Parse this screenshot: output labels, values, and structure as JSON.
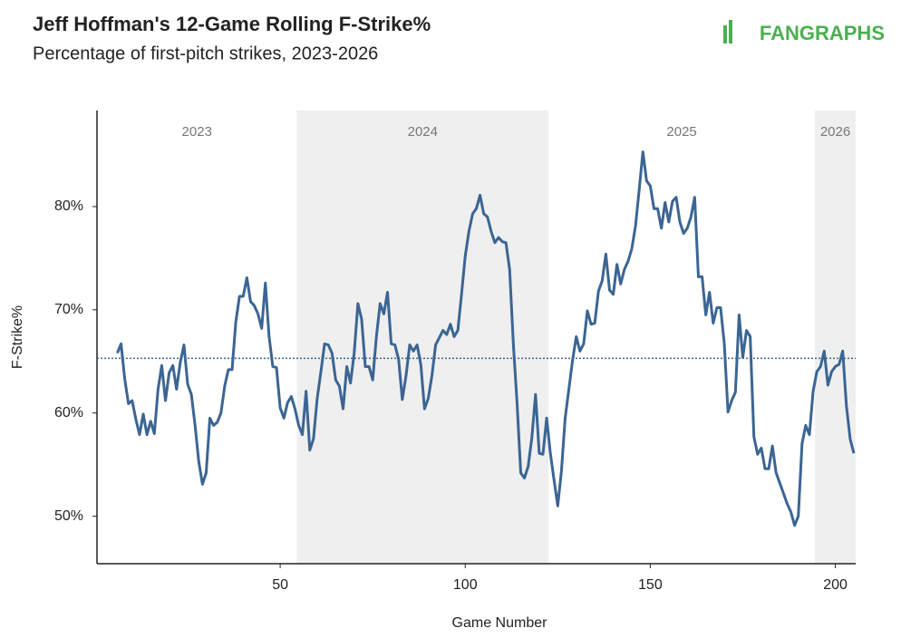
{
  "chart_data": {
    "type": "line",
    "title": "Jeff Hoffman's 12-Game Rolling F-Strike%",
    "subtitle": "Percentage of first-pitch strikes, 2023-2026",
    "logo": "FANGRAPHS",
    "x_label": "Game Number",
    "y_label": "F-Strike%",
    "xlim": [
      0.5,
      205.5
    ],
    "ylim": [
      45.4,
      89.3
    ],
    "xticks": [
      50,
      100,
      150,
      200
    ],
    "yticks": [
      {
        "value": 50,
        "label": "50%"
      },
      {
        "value": 60,
        "label": "60%"
      },
      {
        "value": 70,
        "label": "70%"
      },
      {
        "value": 80,
        "label": "80%"
      }
    ],
    "grid": false,
    "reference_line": 65.3,
    "seasons": [
      {
        "label": "2023",
        "start": 0.5,
        "end": 54.5,
        "shaded": false
      },
      {
        "label": "2024",
        "start": 54.5,
        "end": 122.5,
        "shaded": true
      },
      {
        "label": "2025",
        "start": 122.5,
        "end": 194.5,
        "shaded": false
      },
      {
        "label": "2026",
        "start": 194.5,
        "end": 205.5,
        "shaded": true
      }
    ],
    "x": [
      6,
      7,
      8,
      9,
      10,
      11,
      12,
      13,
      14,
      15,
      16,
      17,
      18,
      19,
      20,
      21,
      22,
      23,
      24,
      25,
      26,
      27,
      28,
      29,
      30,
      31,
      32,
      33,
      34,
      35,
      36,
      37,
      38,
      39,
      40,
      41,
      42,
      43,
      44,
      45,
      46,
      47,
      48,
      49,
      50,
      51,
      52,
      53,
      54,
      55,
      56,
      57,
      58,
      59,
      60,
      61,
      62,
      63,
      64,
      65,
      66,
      67,
      68,
      69,
      70,
      71,
      72,
      73,
      74,
      75,
      76,
      77,
      78,
      79,
      80,
      81,
      82,
      83,
      84,
      85,
      86,
      87,
      88,
      89,
      90,
      91,
      92,
      93,
      94,
      95,
      96,
      97,
      98,
      99,
      100,
      101,
      102,
      103,
      104,
      105,
      106,
      107,
      108,
      109,
      110,
      111,
      112,
      113,
      114,
      115,
      116,
      117,
      118,
      119,
      120,
      121,
      122,
      123,
      124,
      125,
      126,
      127,
      128,
      129,
      130,
      131,
      132,
      133,
      134,
      135,
      136,
      137,
      138,
      139,
      140,
      141,
      142,
      143,
      144,
      145,
      146,
      147,
      148,
      149,
      150,
      151,
      152,
      153,
      154,
      155,
      156,
      157,
      158,
      159,
      160,
      161,
      162,
      163,
      164,
      165,
      166,
      167,
      168,
      169,
      170,
      171,
      172,
      173,
      174,
      175,
      176,
      177,
      178,
      179,
      180,
      181,
      182,
      183,
      184,
      185,
      186,
      187,
      188,
      189,
      190,
      191,
      192,
      193,
      194,
      195,
      196,
      197,
      198,
      199,
      200,
      201,
      202,
      203,
      204,
      205
    ],
    "series": [
      {
        "name": "F-Strike%",
        "color": "#3b6593",
        "values": [
          65.8,
          66.7,
          63.3,
          60.9,
          61.2,
          59.4,
          57.9,
          59.9,
          57.9,
          59.2,
          58.0,
          62.3,
          64.6,
          61.2,
          63.9,
          64.6,
          62.3,
          64.9,
          66.6,
          62.8,
          61.8,
          58.8,
          55.3,
          53.1,
          54.2,
          59.5,
          58.8,
          59.1,
          60.0,
          62.6,
          64.2,
          64.2,
          68.8,
          71.3,
          71.3,
          73.1,
          70.8,
          70.4,
          69.6,
          68.2,
          72.6,
          67.4,
          64.5,
          64.4,
          60.5,
          59.5,
          61.0,
          61.6,
          60.4,
          58.8,
          57.9,
          62.1,
          56.4,
          57.5,
          61.4,
          64.0,
          66.7,
          66.6,
          65.8,
          63.2,
          62.6,
          60.4,
          64.5,
          62.9,
          65.8,
          70.6,
          69.1,
          64.5,
          64.5,
          63.2,
          67.4,
          70.6,
          69.6,
          71.7,
          66.7,
          66.6,
          65.2,
          61.3,
          63.6,
          66.6,
          66.0,
          66.6,
          64.7,
          60.4,
          61.4,
          63.6,
          66.6,
          67.3,
          68.0,
          67.6,
          68.6,
          67.4,
          68.0,
          71.5,
          75.2,
          77.6,
          79.3,
          79.8,
          81.1,
          79.3,
          79.0,
          77.6,
          76.5,
          77.0,
          76.6,
          76.5,
          73.9,
          66.7,
          61.0,
          54.2,
          53.7,
          54.8,
          57.6,
          61.8,
          56.1,
          56.0,
          59.5,
          56.1,
          53.5,
          51.0,
          54.4,
          59.5,
          62.3,
          65.1,
          67.4,
          66.0,
          66.7,
          69.9,
          68.6,
          68.7,
          71.8,
          72.8,
          75.4,
          71.9,
          71.5,
          74.4,
          72.5,
          73.9,
          74.7,
          75.9,
          78.1,
          81.6,
          85.3,
          82.5,
          82.0,
          79.8,
          79.8,
          77.9,
          80.4,
          78.5,
          80.5,
          80.9,
          78.5,
          77.4,
          77.9,
          79.0,
          80.9,
          73.2,
          73.2,
          69.5,
          71.7,
          68.7,
          70.2,
          70.2,
          66.7,
          60.1,
          61.2,
          62.0,
          69.5,
          65.4,
          68.0,
          67.4,
          57.7,
          56.0,
          56.6,
          54.6,
          54.6,
          56.8,
          54.2,
          53.2,
          52.2,
          51.2,
          50.4,
          49.1,
          50.0,
          57.0,
          58.8,
          57.9,
          62.1,
          64.0,
          64.5,
          66.0,
          62.7,
          64.0,
          64.5,
          64.7,
          66.0,
          60.7,
          57.5,
          56.1
        ]
      }
    ]
  }
}
